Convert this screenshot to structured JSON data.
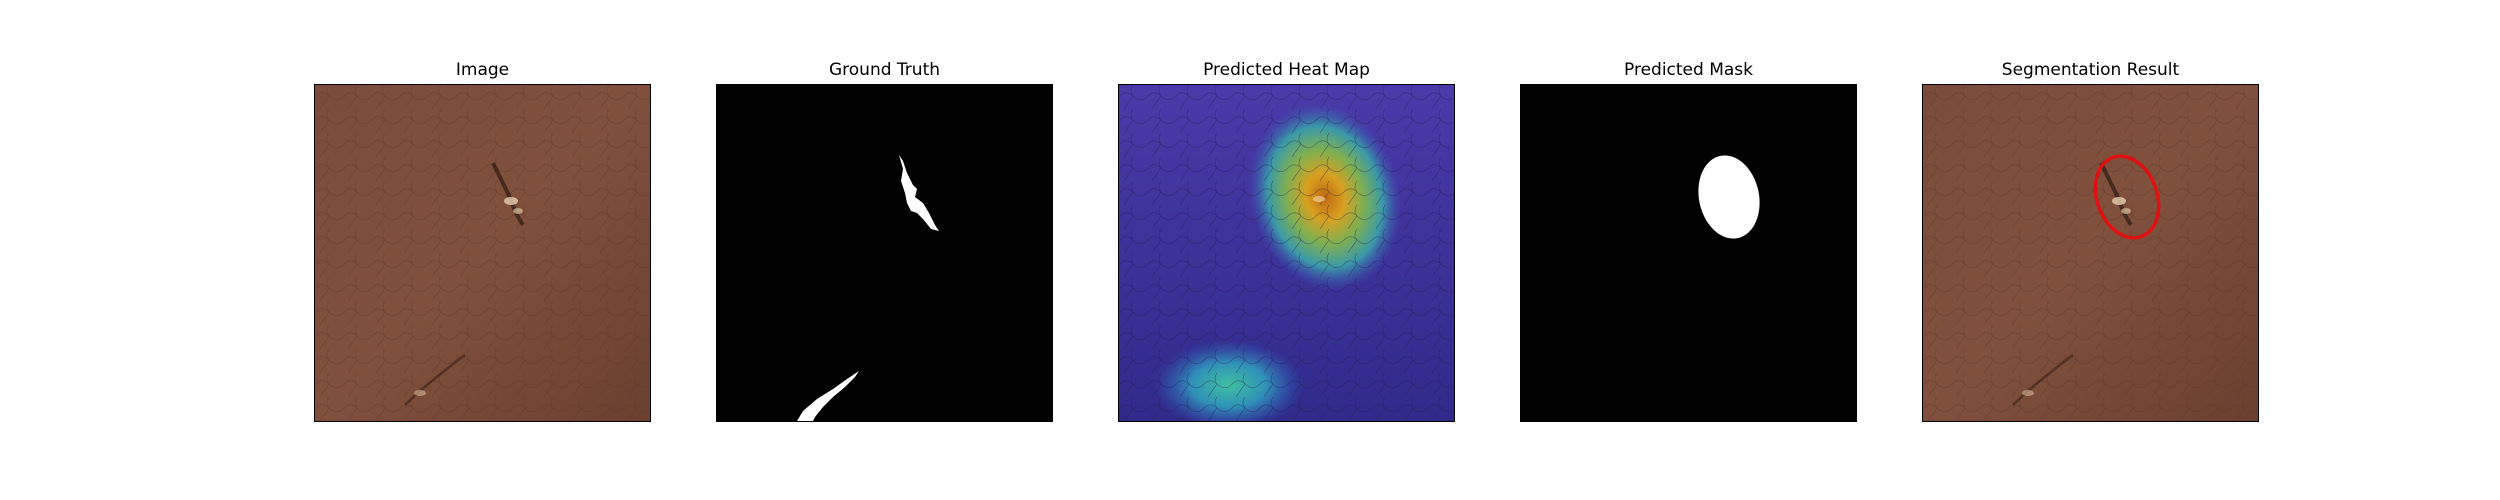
{
  "panels": [
    {
      "title": "Image",
      "icon": "leather-texture-image"
    },
    {
      "title": "Ground Truth",
      "icon": "binary-mask-image"
    },
    {
      "title": "Predicted Heat Map",
      "icon": "heat-map-image"
    },
    {
      "title": "Predicted Mask",
      "icon": "binary-mask-image"
    },
    {
      "title": "Segmentation Result",
      "icon": "leather-texture-image"
    }
  ],
  "colors": {
    "leather": "#7a4a38",
    "mask_foreground": "#ffffff",
    "mask_background": "#000000",
    "heat_low": "#3a2fa0",
    "heat_high": "#e0a000",
    "contour": "#e01010"
  }
}
